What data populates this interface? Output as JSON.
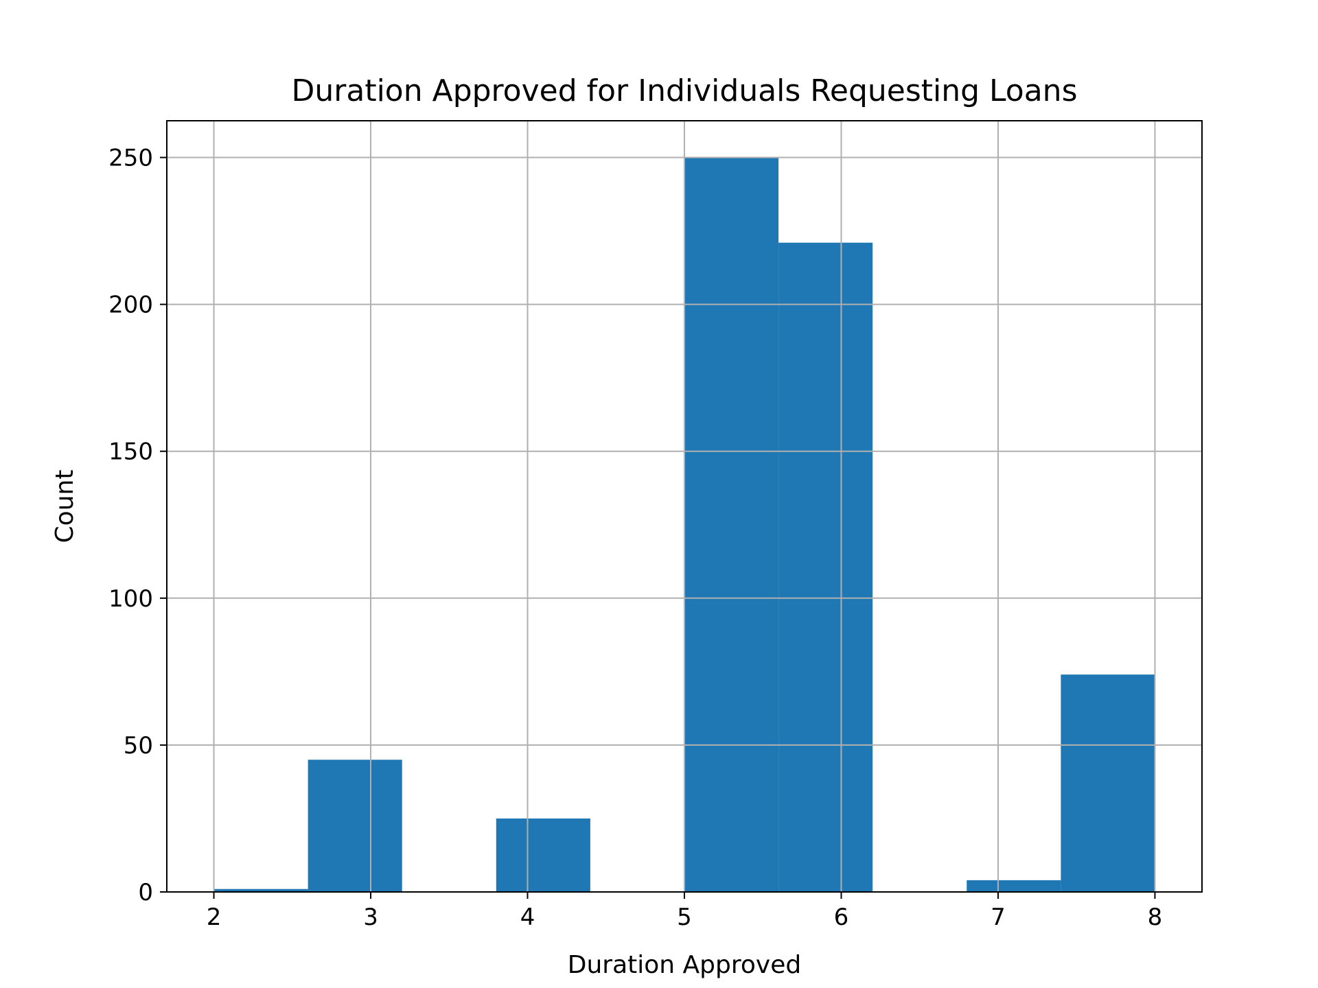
{
  "chart_data": {
    "type": "bar",
    "histogram": true,
    "title": "Duration Approved for Individuals Requesting Loans",
    "xlabel": "Duration Approved",
    "ylabel": "Count",
    "xlim": [
      1.7,
      8.3
    ],
    "ylim": [
      0,
      262.5
    ],
    "xticks": [
      2,
      3,
      4,
      5,
      6,
      7,
      8
    ],
    "yticks": [
      0,
      50,
      100,
      150,
      200,
      250
    ],
    "grid": true,
    "bar_color": "#1f77b4",
    "grid_color": "#b0b0b0",
    "bins": [
      {
        "x0": 2.0,
        "x1": 2.6,
        "value": 1
      },
      {
        "x0": 2.6,
        "x1": 3.2,
        "value": 45
      },
      {
        "x0": 3.2,
        "x1": 3.8,
        "value": 0
      },
      {
        "x0": 3.8,
        "x1": 4.4,
        "value": 25
      },
      {
        "x0": 4.4,
        "x1": 5.0,
        "value": 0
      },
      {
        "x0": 5.0,
        "x1": 5.6,
        "value": 250
      },
      {
        "x0": 5.6,
        "x1": 6.2,
        "value": 221
      },
      {
        "x0": 6.2,
        "x1": 6.8,
        "value": 0
      },
      {
        "x0": 6.8,
        "x1": 7.4,
        "value": 4
      },
      {
        "x0": 7.4,
        "x1": 8.0,
        "value": 74
      }
    ]
  }
}
